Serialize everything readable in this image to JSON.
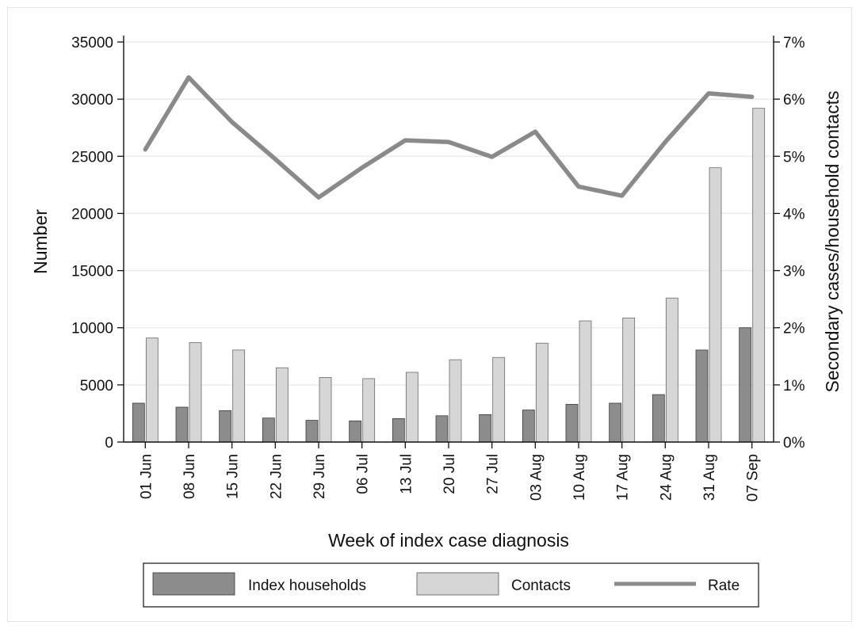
{
  "chart_data": {
    "type": "bar",
    "categories": [
      "01 Jun",
      "08 Jun",
      "15 Jun",
      "22 Jun",
      "29 Jun",
      "06 Jul",
      "13 Jul",
      "20 Jul",
      "27 Jul",
      "03 Aug",
      "10 Aug",
      "17 Aug",
      "24 Aug",
      "31 Aug",
      "07 Sep"
    ],
    "series": [
      {
        "name": "Index households",
        "kind": "bar",
        "axis": "left",
        "color": "#8c8c8c",
        "values": [
          3400,
          3050,
          2750,
          2100,
          1900,
          1850,
          2050,
          2300,
          2400,
          2800,
          3300,
          3400,
          4150,
          8050,
          10000
        ]
      },
      {
        "name": "Contacts",
        "kind": "bar",
        "axis": "left",
        "color": "#d6d6d6",
        "values": [
          9100,
          8700,
          8050,
          6500,
          5650,
          5550,
          6100,
          7200,
          7400,
          8650,
          10600,
          10850,
          12600,
          24000,
          29200
        ]
      },
      {
        "name": "Rate",
        "kind": "line",
        "axis": "right",
        "color": "#8a8a8a",
        "values": [
          5.12,
          6.38,
          5.6,
          4.95,
          4.28,
          4.8,
          5.28,
          5.25,
          4.99,
          5.43,
          4.47,
          4.31,
          5.25,
          6.1,
          6.04
        ]
      }
    ],
    "xlabel": "Week of index case diagnosis",
    "ylabel": "Number",
    "y2label": "Secondary cases/household contacts",
    "ylim": [
      0,
      35000
    ],
    "yticks": [
      0,
      5000,
      10000,
      15000,
      20000,
      25000,
      30000,
      35000
    ],
    "y2lim": [
      0,
      7
    ],
    "y2ticks": [
      "0%",
      "1%",
      "2%",
      "3%",
      "4%",
      "5%",
      "6%",
      "7%"
    ],
    "grid": true,
    "legend": {
      "position": "bottom",
      "entries": [
        "Index households",
        "Contacts",
        "Rate"
      ]
    }
  }
}
